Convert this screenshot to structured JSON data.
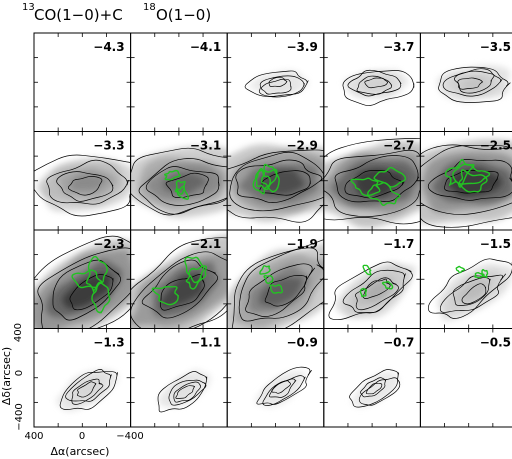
{
  "title": {
    "prefix_sup": "13",
    "mid1": "CO(1−0)+C",
    "mid_sup": "18",
    "mid2": "O(1−0)"
  },
  "panels": [
    {
      "label": "−4.3"
    },
    {
      "label": "−4.1"
    },
    {
      "label": "−3.9"
    },
    {
      "label": "−3.7"
    },
    {
      "label": "−3.5"
    },
    {
      "label": "−3.3"
    },
    {
      "label": "−3.1"
    },
    {
      "label": "−2.9"
    },
    {
      "label": "−2.7"
    },
    {
      "label": "−2.5"
    },
    {
      "label": "−2.3"
    },
    {
      "label": "−2.1"
    },
    {
      "label": "−1.9"
    },
    {
      "label": "−1.7"
    },
    {
      "label": "−1.5"
    },
    {
      "label": "−1.3"
    },
    {
      "label": "−1.1"
    },
    {
      "label": "−0.9"
    },
    {
      "label": "−0.7"
    },
    {
      "label": "−0.5"
    }
  ],
  "axes": {
    "xlabel": "Δα(arcsec)",
    "ylabel": "Δδ(arcsec)",
    "xticks": [
      "400",
      "0",
      "−400"
    ],
    "yticks": [
      "400",
      "0",
      "−400"
    ]
  },
  "colors": {
    "contour_13co": "#000000",
    "contour_c18o": "#22c322",
    "greyscale_max": "#2a2a2a"
  }
}
